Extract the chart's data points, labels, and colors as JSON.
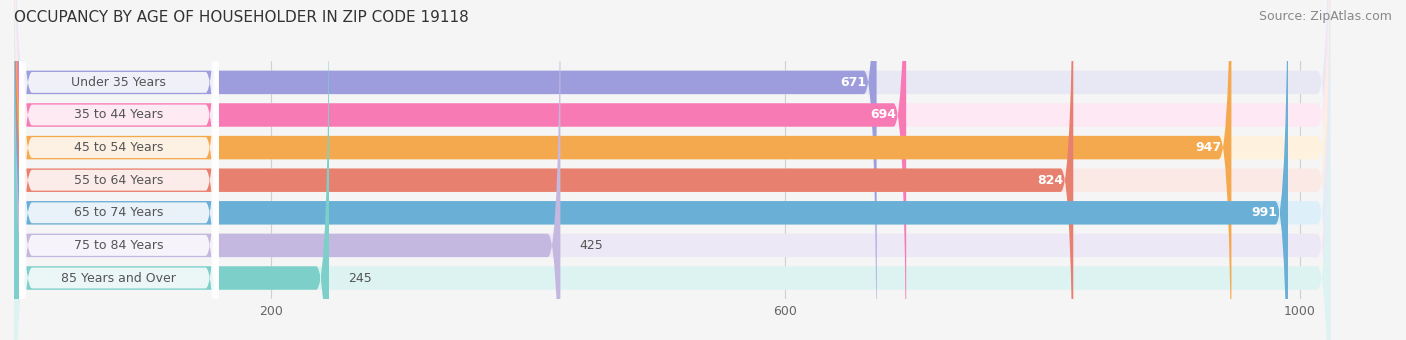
{
  "title": "OCCUPANCY BY AGE OF HOUSEHOLDER IN ZIP CODE 19118",
  "source": "Source: ZipAtlas.com",
  "categories": [
    "Under 35 Years",
    "35 to 44 Years",
    "45 to 54 Years",
    "55 to 64 Years",
    "65 to 74 Years",
    "75 to 84 Years",
    "85 Years and Over"
  ],
  "values": [
    671,
    694,
    947,
    824,
    991,
    425,
    245
  ],
  "bar_colors": [
    "#9d9dde",
    "#f87ab5",
    "#f5a94f",
    "#e8806f",
    "#6aafd6",
    "#c5b8e0",
    "#7dcfca"
  ],
  "bar_background_colors": [
    "#e8e8f5",
    "#fde8f3",
    "#fef1de",
    "#fbe9e6",
    "#ddf0fa",
    "#ede8f6",
    "#ddf3f1"
  ],
  "xlim_max": 1050,
  "xticks": [
    200,
    600,
    1000
  ],
  "title_fontsize": 11,
  "source_fontsize": 9,
  "label_fontsize": 9,
  "value_fontsize": 9,
  "background_color": "#f5f5f5",
  "label_color": "#555555",
  "grid_color": "#d0d0d0"
}
